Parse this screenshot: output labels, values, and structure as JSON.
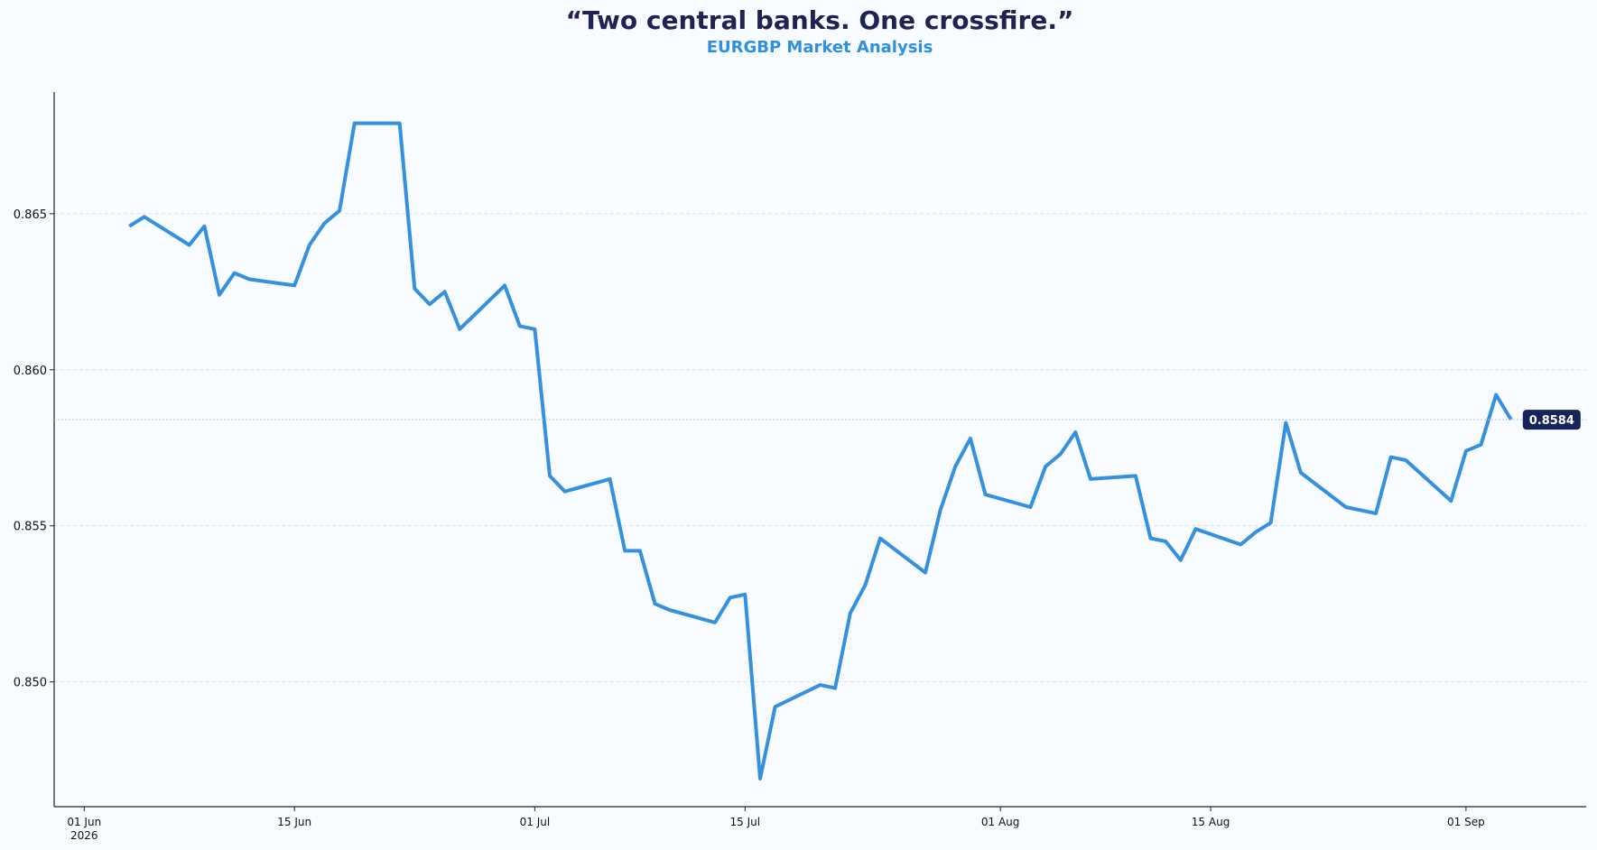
{
  "chart_data": {
    "type": "line",
    "title": "“Two central banks. One crossfire.”",
    "subtitle": "EURGBP Market Analysis",
    "x": [
      "2026-06-04",
      "2026-06-05",
      "2026-06-08",
      "2026-06-09",
      "2026-06-10",
      "2026-06-11",
      "2026-06-12",
      "2026-06-15",
      "2026-06-16",
      "2026-06-17",
      "2026-06-18",
      "2026-06-19",
      "2026-06-22",
      "2026-06-23",
      "2026-06-24",
      "2026-06-25",
      "2026-06-26",
      "2026-06-29",
      "2026-06-30",
      "2026-07-01",
      "2026-07-02",
      "2026-07-03",
      "2026-07-06",
      "2026-07-07",
      "2026-07-08",
      "2026-07-09",
      "2026-07-10",
      "2026-07-13",
      "2026-07-14",
      "2026-07-15",
      "2026-07-16",
      "2026-07-17",
      "2026-07-20",
      "2026-07-21",
      "2026-07-22",
      "2026-07-23",
      "2026-07-24",
      "2026-07-27",
      "2026-07-28",
      "2026-07-29",
      "2026-07-30",
      "2026-07-31",
      "2026-08-03",
      "2026-08-04",
      "2026-08-05",
      "2026-08-06",
      "2026-08-07",
      "2026-08-10",
      "2026-08-11",
      "2026-08-12",
      "2026-08-13",
      "2026-08-14",
      "2026-08-17",
      "2026-08-18",
      "2026-08-19",
      "2026-08-20",
      "2026-08-21",
      "2026-08-24",
      "2026-08-25",
      "2026-08-26",
      "2026-08-27",
      "2026-08-28",
      "2026-08-31",
      "2026-09-01",
      "2026-09-02",
      "2026-09-03",
      "2026-09-04"
    ],
    "values": [
      0.8646,
      0.8649,
      0.864,
      0.8646,
      0.8624,
      0.8631,
      0.8629,
      0.8627,
      0.864,
      0.8647,
      0.8651,
      0.8679,
      0.8679,
      0.8626,
      0.8621,
      0.8625,
      0.8613,
      0.8627,
      0.8614,
      0.8613,
      0.8566,
      0.8561,
      0.8565,
      0.8542,
      0.8542,
      0.8525,
      0.8523,
      0.8519,
      0.8527,
      0.8528,
      0.8469,
      0.8492,
      0.8499,
      0.8498,
      0.8522,
      0.8531,
      0.8546,
      0.8535,
      0.8555,
      0.8569,
      0.8578,
      0.856,
      0.8556,
      0.8569,
      0.8573,
      0.858,
      0.8565,
      0.8566,
      0.8546,
      0.8545,
      0.8539,
      0.8549,
      0.8544,
      0.8548,
      0.8551,
      0.8583,
      0.8567,
      0.8556,
      0.8555,
      0.8554,
      0.8572,
      0.8571,
      0.8558,
      0.8574,
      0.8576,
      0.8592,
      0.8584
    ],
    "color": "#3590e0",
    "xlim": [
      "2026-05-30",
      "2026-09-09"
    ],
    "xticks": [
      {
        "value": "2026-06-01",
        "label": "01 Jun"
      },
      {
        "value": "2026-06-15",
        "label": "15 Jun"
      },
      {
        "value": "2026-07-01",
        "label": "01 Jul"
      },
      {
        "value": "2026-07-15",
        "label": "15 Jul"
      },
      {
        "value": "2026-08-01",
        "label": "01 Aug"
      },
      {
        "value": "2026-08-15",
        "label": "15 Aug"
      },
      {
        "value": "2026-09-01",
        "label": "01 Sep"
      }
    ],
    "x_year_label": "2026",
    "ylim": [
      0.846,
      0.8689
    ],
    "yticks": [
      {
        "value": 0.85,
        "label": "0.850"
      },
      0.855,
      {
        "value": 0.86,
        "label": "0.860"
      },
      0.865
    ],
    "grid": true
  }
}
